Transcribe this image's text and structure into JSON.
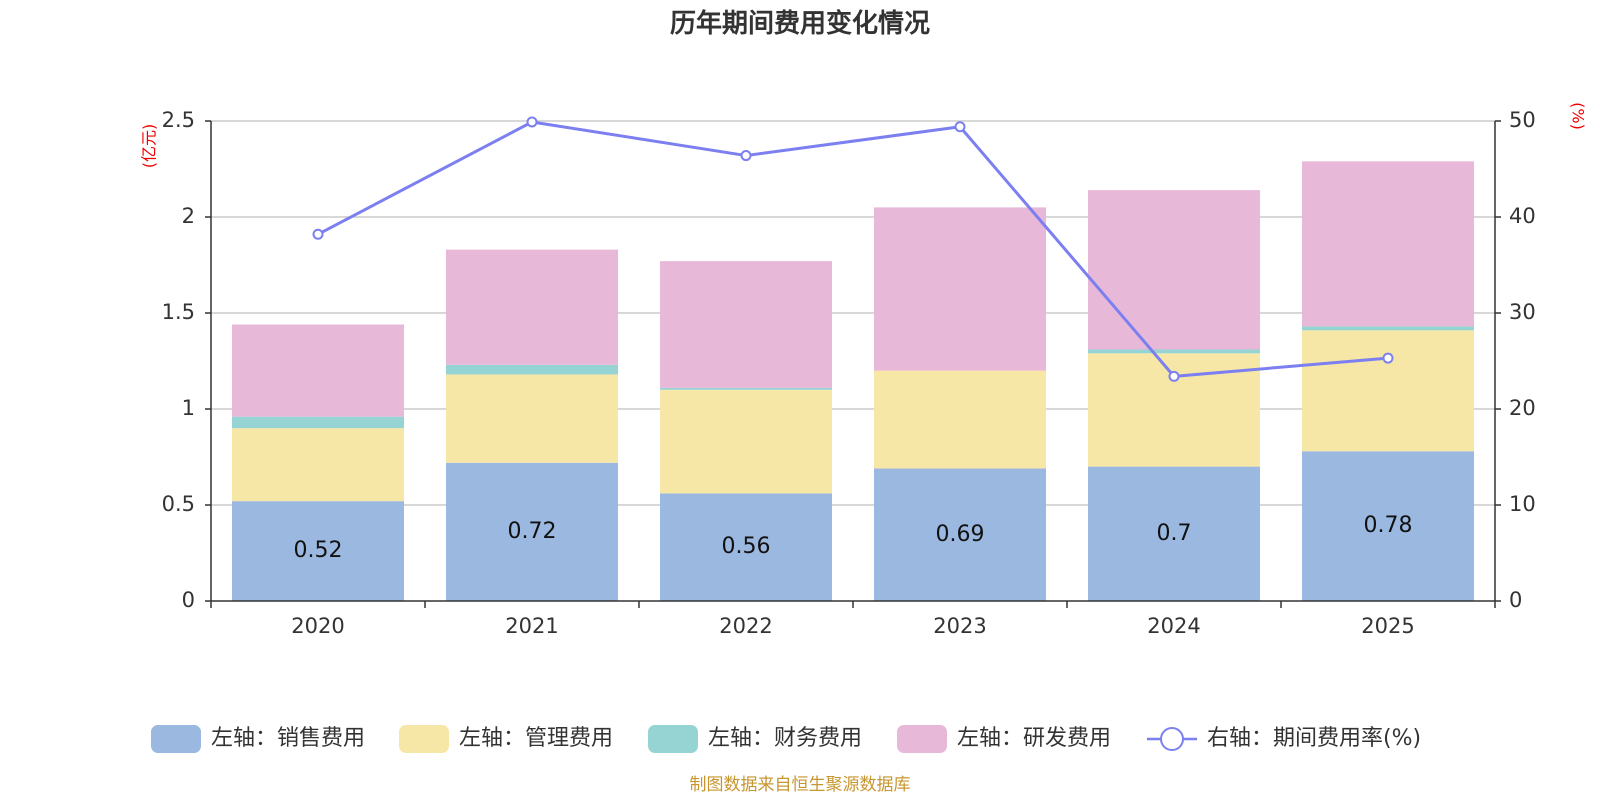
{
  "chart_data": {
    "type": "bar",
    "title": "历年期间费用变化情况",
    "categories": [
      "2020",
      "2021",
      "2022",
      "2023",
      "2024",
      "2025"
    ],
    "left_axis": {
      "unit": "(亿元)",
      "ylim": [
        0,
        2.5
      ],
      "ticks": [
        "0",
        "0.5",
        "1",
        "1.5",
        "2",
        "2.5"
      ],
      "tick_values": [
        0,
        0.5,
        1,
        1.5,
        2,
        2.5
      ]
    },
    "right_axis": {
      "unit": "(%)",
      "ylim": [
        0,
        50
      ],
      "ticks": [
        "0",
        "10",
        "20",
        "30",
        "40",
        "50"
      ],
      "tick_values": [
        0,
        10,
        20,
        30,
        40,
        50
      ]
    },
    "series": [
      {
        "name": "左轴：销售费用",
        "kind": "bar",
        "axis": "left",
        "color": "#9bb8e1",
        "values": [
          0.52,
          0.72,
          0.56,
          0.69,
          0.7,
          0.78
        ],
        "labels": [
          "0.52",
          "0.72",
          "0.56",
          "0.69",
          "0.7",
          "0.78"
        ]
      },
      {
        "name": "左轴：管理费用",
        "kind": "bar",
        "axis": "left",
        "color": "#f7e7a6",
        "values": [
          0.38,
          0.46,
          0.54,
          0.51,
          0.59,
          0.63
        ]
      },
      {
        "name": "左轴：财务费用",
        "kind": "bar",
        "axis": "left",
        "color": "#96d4d4",
        "values": [
          0.06,
          0.05,
          0.01,
          0.0,
          0.02,
          0.02
        ]
      },
      {
        "name": "左轴：研发费用",
        "kind": "bar",
        "axis": "left",
        "color": "#e8b8d9",
        "values": [
          0.48,
          0.6,
          0.66,
          0.85,
          0.83,
          0.86
        ]
      },
      {
        "name": "右轴：期间费用率(%)",
        "kind": "line",
        "axis": "right",
        "color": "#7b7ff0",
        "values": [
          38.2,
          49.9,
          46.4,
          49.4,
          23.4,
          25.3
        ]
      }
    ],
    "source": "制图数据来自恒生聚源数据库"
  }
}
